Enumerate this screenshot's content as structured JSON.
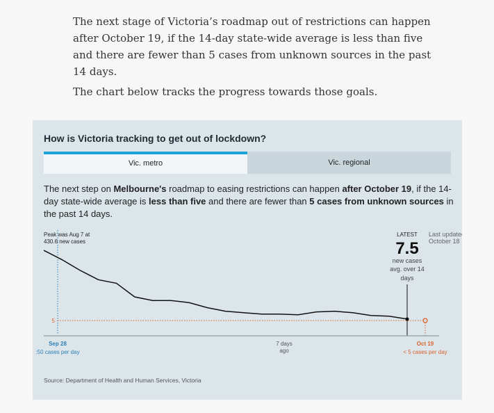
{
  "article": {
    "para1": "The next stage of Victoria’s roadmap out of restrictions can happen after October 19, if the 14-day state-wide average is less than five and there are fewer than 5 cases from unknown sources in the past 14 days.",
    "para2": "The chart below tracks the progress towards those goals."
  },
  "card": {
    "title": "How is Victoria tracking to get out of lockdown?",
    "tabs": [
      {
        "label": "Vic. metro",
        "active": true
      },
      {
        "label": "Vic. regional",
        "active": false
      }
    ],
    "desc": {
      "t1": "The next step on ",
      "b1": "Melbourne's",
      "t2": " roadmap to easing restrictions can happen ",
      "b2": "after October 19",
      "t3": ", if the 14-day state-wide average is ",
      "b3": "less than five",
      "t4": " and there are fewer than ",
      "b4": "5 cases from unknown sources",
      "t5": " in the past 14 days."
    },
    "source": "Source: Department of Health and Human Services, Victoria"
  },
  "chart_data": {
    "type": "line",
    "series": [
      {
        "values": [
          14.8,
          13.5,
          12.0,
          10.7,
          10.2,
          8.3,
          7.8,
          7.8,
          7.5,
          6.8,
          6.3,
          6.1,
          5.9,
          5.9,
          5.8,
          6.2,
          6.3,
          6.1,
          5.7,
          5.6,
          5.2,
          7.5
        ]
      }
    ],
    "x_labels": {
      "start": "Sep 28",
      "middle_line1": "7 days",
      "middle_line2": "ago",
      "end": "Oct 19"
    },
    "start_note": ":50 cases per day",
    "end_note": "< 5 cases per day",
    "threshold": {
      "value": 5,
      "label": "5"
    },
    "peak": {
      "line1": "Peak was Aug 7 at",
      "line2": "430.6 new cases"
    },
    "latest": {
      "label": "LATEST",
      "value": "7.5",
      "line1": "new cases",
      "line2": "avg. over 14",
      "line3": "days",
      "updated1": "Last updated:",
      "updated2": "October 18"
    },
    "colors": {
      "line": "#111111",
      "threshold": "#d9622b",
      "start": "#2d7fb8",
      "axis": "#9aaab2"
    }
  }
}
